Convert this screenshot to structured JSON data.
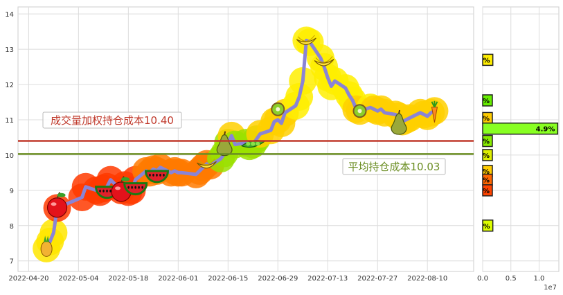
{
  "chart_data": [
    {
      "type": "line",
      "x_ticks": [
        "2022-04-20",
        "2022-05-04",
        "2022-05-18",
        "2022-06-01",
        "2022-06-15",
        "2022-06-29",
        "2022-07-13",
        "2022-07-27",
        "2022-08-10"
      ],
      "y_ticks": [
        "7",
        "8",
        "9",
        "10",
        "11",
        "12",
        "13",
        "14"
      ],
      "ylim": [
        6.7,
        14.2
      ],
      "xlim": [
        "2022-04-17",
        "2022-08-23"
      ],
      "grid": true,
      "series": [
        {
          "color": "#8a84d6",
          "points": [
            [
              "2022-04-25",
              7.35
            ],
            [
              "2022-04-26",
              7.55
            ],
            [
              "2022-04-27",
              7.8
            ],
            [
              "2022-04-28",
              8.5
            ],
            [
              "2022-05-05",
              8.8
            ],
            [
              "2022-05-06",
              9.1
            ],
            [
              "2022-05-09",
              9.0
            ],
            [
              "2022-05-10",
              8.95
            ],
            [
              "2022-05-11",
              9.05
            ],
            [
              "2022-05-12",
              9.1
            ],
            [
              "2022-05-13",
              9.3
            ],
            [
              "2022-05-16",
              9.0
            ],
            [
              "2022-05-17",
              9.15
            ],
            [
              "2022-05-18",
              8.95
            ],
            [
              "2022-05-19",
              9.0
            ],
            [
              "2022-05-20",
              9.3
            ],
            [
              "2022-05-23",
              9.55
            ],
            [
              "2022-05-24",
              9.5
            ],
            [
              "2022-05-25",
              9.6
            ],
            [
              "2022-05-26",
              9.55
            ],
            [
              "2022-05-27",
              9.65
            ],
            [
              "2022-05-30",
              9.5
            ],
            [
              "2022-05-31",
              9.55
            ],
            [
              "2022-06-01",
              9.5
            ],
            [
              "2022-06-02",
              9.5
            ],
            [
              "2022-06-06",
              9.45
            ],
            [
              "2022-06-07",
              9.55
            ],
            [
              "2022-06-08",
              9.65
            ],
            [
              "2022-06-09",
              9.75
            ],
            [
              "2022-06-10",
              9.7
            ],
            [
              "2022-06-13",
              9.9
            ],
            [
              "2022-06-14",
              10.05
            ],
            [
              "2022-06-15",
              10.35
            ],
            [
              "2022-06-16",
              10.55
            ],
            [
              "2022-06-17",
              10.3
            ],
            [
              "2022-06-20",
              10.35
            ],
            [
              "2022-06-21",
              10.25
            ],
            [
              "2022-06-22",
              10.3
            ],
            [
              "2022-06-23",
              10.45
            ],
            [
              "2022-06-24",
              10.6
            ],
            [
              "2022-06-27",
              10.7
            ],
            [
              "2022-06-28",
              10.95
            ],
            [
              "2022-06-29",
              11.0
            ],
            [
              "2022-06-30",
              10.9
            ],
            [
              "2022-07-01",
              11.2
            ],
            [
              "2022-07-04",
              11.4
            ],
            [
              "2022-07-05",
              11.65
            ],
            [
              "2022-07-06",
              12.1
            ],
            [
              "2022-07-07",
              13.25
            ],
            [
              "2022-07-08",
              13.2
            ],
            [
              "2022-07-11",
              12.75
            ],
            [
              "2022-07-12",
              12.5
            ],
            [
              "2022-07-13",
              12.2
            ],
            [
              "2022-07-14",
              11.95
            ],
            [
              "2022-07-15",
              12.1
            ],
            [
              "2022-07-18",
              11.9
            ],
            [
              "2022-07-19",
              11.7
            ],
            [
              "2022-07-20",
              11.55
            ],
            [
              "2022-07-21",
              11.3
            ],
            [
              "2022-07-22",
              11.25
            ],
            [
              "2022-07-25",
              11.35
            ],
            [
              "2022-07-26",
              11.3
            ],
            [
              "2022-07-27",
              11.25
            ],
            [
              "2022-07-28",
              11.3
            ],
            [
              "2022-07-29",
              11.2
            ],
            [
              "2022-08-01",
              11.15
            ],
            [
              "2022-08-02",
              11.1
            ],
            [
              "2022-08-03",
              10.95
            ],
            [
              "2022-08-04",
              11.0
            ],
            [
              "2022-08-05",
              11.05
            ],
            [
              "2022-08-08",
              11.2
            ],
            [
              "2022-08-09",
              11.15
            ],
            [
              "2022-08-10",
              11.1
            ],
            [
              "2022-08-11",
              11.2
            ],
            [
              "2022-08-12",
              11.25
            ]
          ]
        }
      ],
      "reference_lines": [
        {
          "label": "成交量加权持仓成本10.40",
          "value": 10.4,
          "color": "#c0392b"
        },
        {
          "label": "平均持仓成本10.03",
          "value": 10.03,
          "color": "#6b8e23"
        }
      ],
      "fruit_markers": [
        {
          "date": "2022-04-25",
          "value": 7.4,
          "fruit": "pineapple",
          "glow": "#ffea00"
        },
        {
          "date": "2022-04-28",
          "value": 8.55,
          "fruit": "apple",
          "glow": "#ff3b00"
        },
        {
          "date": "2022-05-12",
          "value": 9.1,
          "fruit": "watermelon",
          "glow": "#ff5a00"
        },
        {
          "date": "2022-05-16",
          "value": 9.0,
          "fruit": "apple",
          "glow": "#ff2d00"
        },
        {
          "date": "2022-05-20",
          "value": 9.2,
          "fruit": "watermelon",
          "glow": "#ff4a00"
        },
        {
          "date": "2022-05-26",
          "value": 9.55,
          "fruit": "watermelon",
          "glow": "#ff6a00"
        },
        {
          "date": "2022-06-09",
          "value": 9.7,
          "fruit": "banana",
          "glow": "#ff8a00"
        },
        {
          "date": "2022-06-14",
          "value": 10.3,
          "fruit": "pear",
          "glow": "#aaee00"
        },
        {
          "date": "2022-06-22",
          "value": 10.3,
          "fruit": "peapod",
          "glow": "#66dd00"
        },
        {
          "date": "2022-06-29",
          "value": 11.3,
          "fruit": "kiwi",
          "glow": "#ffdd00"
        },
        {
          "date": "2022-07-07",
          "value": 13.2,
          "fruit": "banana",
          "glow": "#ffee00"
        },
        {
          "date": "2022-07-12",
          "value": 12.6,
          "fruit": "banana",
          "glow": "#ffe000"
        },
        {
          "date": "2022-07-22",
          "value": 11.25,
          "fruit": "kiwi",
          "glow": "#ffcc00"
        },
        {
          "date": "2022-08-02",
          "value": 10.9,
          "fruit": "pear",
          "glow": "#66dd00"
        },
        {
          "date": "2022-08-12",
          "value": 11.2,
          "fruit": "carrot",
          "glow": "#ffcc00"
        }
      ]
    },
    {
      "type": "bar",
      "orientation": "horizontal",
      "x_ticks": [
        "0.0",
        "0.5",
        "1.0"
      ],
      "x_scale_label": "1e7",
      "xlim": [
        0,
        1.35
      ],
      "bars": [
        {
          "price": 12.7,
          "value": 0.18,
          "label": "%",
          "color": "#ffee00"
        },
        {
          "price": 11.55,
          "value": 0.15,
          "label": "%",
          "color": "#66ee00"
        },
        {
          "price": 11.05,
          "value": 0.15,
          "label": "%",
          "color": "#ffcc00"
        },
        {
          "price": 10.75,
          "value": 1.33,
          "label": "4.9%",
          "color": "#88ff22"
        },
        {
          "price": 10.4,
          "value": 0.12,
          "label": "%",
          "color": "#88ee00"
        },
        {
          "price": 10.0,
          "value": 0.12,
          "label": "%",
          "color": "#ddee00"
        },
        {
          "price": 9.55,
          "value": 0.11,
          "label": "%",
          "color": "#ffcc00"
        },
        {
          "price": 9.3,
          "value": 0.14,
          "label": "%",
          "color": "#ff6600"
        },
        {
          "price": 9.0,
          "value": 0.12,
          "label": "%",
          "color": "#ff4400"
        },
        {
          "price": 8.0,
          "value": 0.18,
          "label": "%",
          "color": "#ddff00"
        }
      ]
    }
  ]
}
